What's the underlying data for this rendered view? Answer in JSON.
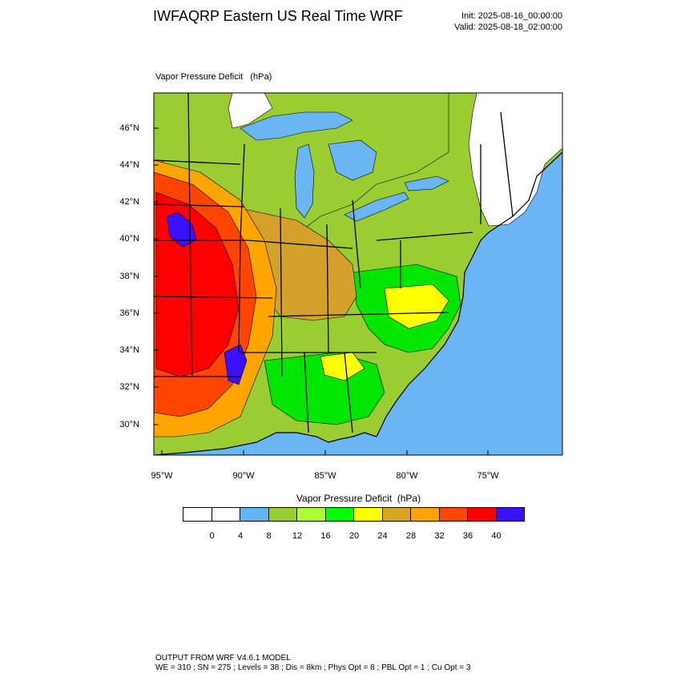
{
  "header": {
    "title": "IWFAQRP Eastern US Real Time WRF",
    "init": "Init: 2025-08-16_00:00:00",
    "valid": "Valid: 2025-08-18_02:00:00"
  },
  "field_label": "Vapor Pressure Deficit   (hPa)",
  "map": {
    "latitude_labels": [
      "46°N",
      "44°N",
      "42°N",
      "40°N",
      "38°N",
      "36°N",
      "34°N",
      "32°N",
      "30°N"
    ],
    "longitude_labels": [
      "95°W",
      "90°W",
      "85°W",
      "80°W",
      "75°W"
    ],
    "colors": {
      "ocean": "#6ab6f5",
      "land_low": "#9acd32",
      "land_mid": "#adff2f",
      "land_green": "#00e600",
      "land_yellow": "#ffff00",
      "land_tan": "#d4a12a",
      "land_orange": "#ffa500",
      "land_redorange": "#ff4500",
      "land_red": "#ff0000",
      "land_blue": "#3a10ff",
      "lakes": "#6ab6f5",
      "white": "#ffffff"
    }
  },
  "colorbar": {
    "title": "Vapor Pressure Deficit  (hPa)",
    "ticks": [
      "0",
      "4",
      "8",
      "12",
      "16",
      "20",
      "24",
      "28",
      "32",
      "36",
      "40"
    ],
    "colors": [
      "#ffffff",
      "#ffffff",
      "#63b3f5",
      "#9acd32",
      "#adff2f",
      "#00ff00",
      "#ffff00",
      "#daa520",
      "#ffa500",
      "#ff4500",
      "#ff0000",
      "#3a10ff"
    ]
  },
  "footer": {
    "line1": "OUTPUT FROM WRF V4.6.1 MODEL",
    "line2": "WE = 310 ; SN = 275 ; Levels = 38 ; Dis = 8km ; Phys Opt = 8 ; PBL Opt = 1 ; Cu Opt = 3"
  }
}
